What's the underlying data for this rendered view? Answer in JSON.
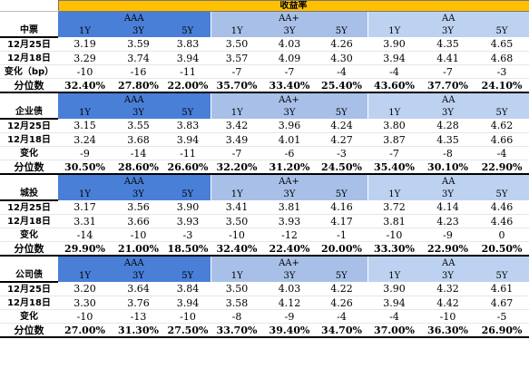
{
  "title": "收益率",
  "grades": [
    "AAA",
    "AA+",
    "AA"
  ],
  "tenors": [
    "1Y",
    "3Y",
    "5Y"
  ],
  "sections": [
    {
      "name": "中票",
      "rows": [
        {
          "label": "12月25日",
          "values": [
            "3.19",
            "3.59",
            "3.83",
            "3.50",
            "4.03",
            "4.26",
            "3.90",
            "4.35",
            "4.65"
          ]
        },
        {
          "label": "12月18日",
          "values": [
            "3.29",
            "3.74",
            "3.94",
            "3.57",
            "4.09",
            "4.30",
            "3.94",
            "4.41",
            "4.68"
          ]
        },
        {
          "label": "变化（bp）",
          "values": [
            "-10",
            "-16",
            "-11",
            "-7",
            "-7",
            "-4",
            "-4",
            "-7",
            "-3"
          ]
        },
        {
          "label": "分位数",
          "values": [
            "32.40%",
            "27.80%",
            "22.00%",
            "35.70%",
            "33.40%",
            "25.40%",
            "43.60%",
            "37.70%",
            "24.10%"
          ]
        }
      ]
    },
    {
      "name": "企业债",
      "rows": [
        {
          "label": "12月25日",
          "values": [
            "3.15",
            "3.55",
            "3.83",
            "3.42",
            "3.96",
            "4.24",
            "3.80",
            "4.28",
            "4.62"
          ]
        },
        {
          "label": "12月18日",
          "values": [
            "3.24",
            "3.68",
            "3.94",
            "3.49",
            "4.01",
            "4.27",
            "3.87",
            "4.35",
            "4.66"
          ]
        },
        {
          "label": "变化",
          "values": [
            "-9",
            "-14",
            "-11",
            "-7",
            "-6",
            "-3",
            "-7",
            "-8",
            "-4"
          ]
        },
        {
          "label": "分位数",
          "values": [
            "30.50%",
            "28.60%",
            "26.60%",
            "32.20%",
            "31.20%",
            "24.50%",
            "35.40%",
            "30.10%",
            "22.90%"
          ]
        }
      ]
    },
    {
      "name": "城投",
      "rows": [
        {
          "label": "12月25日",
          "values": [
            "3.17",
            "3.56",
            "3.90",
            "3.41",
            "3.81",
            "4.16",
            "3.72",
            "4.14",
            "4.46"
          ]
        },
        {
          "label": "12月18日",
          "values": [
            "3.31",
            "3.66",
            "3.93",
            "3.50",
            "3.93",
            "4.17",
            "3.81",
            "4.23",
            "4.46"
          ]
        },
        {
          "label": "变化",
          "values": [
            "-14",
            "-10",
            "-3",
            "-10",
            "-12",
            "-1",
            "-10",
            "-9",
            "0"
          ]
        },
        {
          "label": "分位数",
          "values": [
            "29.90%",
            "21.00%",
            "18.50%",
            "32.40%",
            "22.40%",
            "20.00%",
            "33.30%",
            "22.90%",
            "20.50%"
          ]
        }
      ]
    },
    {
      "name": "公司债",
      "rows": [
        {
          "label": "12月25日",
          "values": [
            "3.20",
            "3.64",
            "3.84",
            "3.50",
            "4.03",
            "4.22",
            "3.90",
            "4.32",
            "4.61"
          ]
        },
        {
          "label": "12月18日",
          "values": [
            "3.30",
            "3.76",
            "3.94",
            "3.58",
            "4.12",
            "4.26",
            "3.94",
            "4.42",
            "4.67"
          ]
        },
        {
          "label": "变化",
          "values": [
            "-10",
            "-13",
            "-10",
            "-8",
            "-9",
            "-4",
            "-4",
            "-10",
            "-5"
          ]
        },
        {
          "label": "分位数",
          "values": [
            "27.00%",
            "31.30%",
            "27.50%",
            "33.70%",
            "39.40%",
            "34.70%",
            "37.00%",
            "36.30%",
            "26.90%"
          ]
        }
      ]
    }
  ],
  "colors": {
    "title_bg": "#ffc000",
    "aaa_bg": "#4a7fd8",
    "aa_plus_bg": "#a8c0e8",
    "aa_bg": "#bdd2f0"
  }
}
